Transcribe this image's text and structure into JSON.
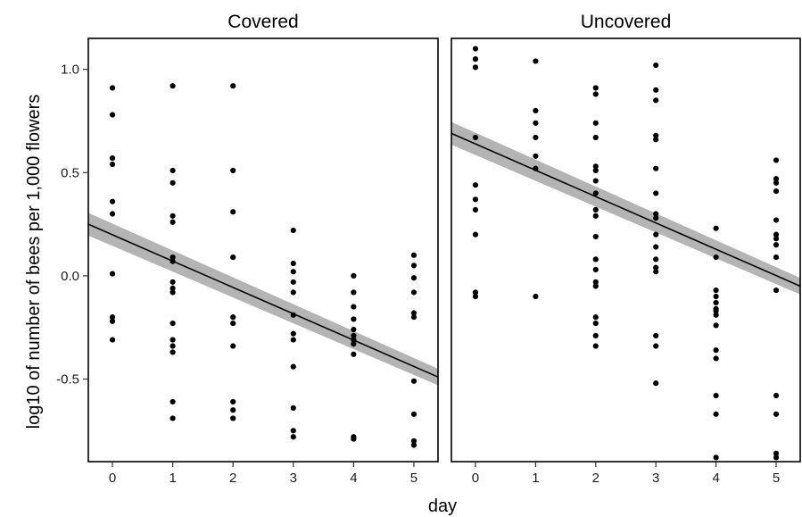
{
  "chart_data": {
    "type": "scatter",
    "xlabel": "day",
    "ylabel": "log10 of number of bees per 1,000 flowers",
    "xlim": [
      -0.4,
      5.4
    ],
    "ylim": [
      -0.9,
      1.15
    ],
    "x_ticks": [
      0,
      1,
      2,
      3,
      4,
      5
    ],
    "y_ticks": [
      -0.5,
      0.0,
      0.5,
      1.0
    ],
    "y_tick_labels": [
      "-0.5",
      "0.0",
      "0.5",
      "1.0"
    ],
    "grid": false,
    "legend": "none",
    "colors": {
      "points": "#000000",
      "band": "#b4b4b4",
      "line": "#000000"
    },
    "panels": [
      {
        "title": "Covered",
        "fit": {
          "x": [
            -0.4,
            5.4
          ],
          "y": [
            0.25,
            -0.49
          ],
          "band_halfwidth": [
            0.055,
            0.04
          ]
        },
        "points": [
          {
            "x": 0,
            "y": 0.91
          },
          {
            "x": 0,
            "y": 0.78
          },
          {
            "x": 0,
            "y": 0.57
          },
          {
            "x": 0,
            "y": 0.54
          },
          {
            "x": 0,
            "y": 0.36
          },
          {
            "x": 0,
            "y": 0.3
          },
          {
            "x": 0,
            "y": 0.01
          },
          {
            "x": 0,
            "y": -0.2
          },
          {
            "x": 0,
            "y": -0.22
          },
          {
            "x": 0,
            "y": -0.31
          },
          {
            "x": 1,
            "y": 0.92
          },
          {
            "x": 1,
            "y": 0.51
          },
          {
            "x": 1,
            "y": 0.45
          },
          {
            "x": 1,
            "y": 0.29
          },
          {
            "x": 1,
            "y": 0.26
          },
          {
            "x": 1,
            "y": 0.09
          },
          {
            "x": 1,
            "y": 0.07
          },
          {
            "x": 1,
            "y": -0.03
          },
          {
            "x": 1,
            "y": -0.06
          },
          {
            "x": 1,
            "y": -0.08
          },
          {
            "x": 1,
            "y": -0.23
          },
          {
            "x": 1,
            "y": -0.31
          },
          {
            "x": 1,
            "y": -0.34
          },
          {
            "x": 1,
            "y": -0.37
          },
          {
            "x": 1,
            "y": -0.61
          },
          {
            "x": 1,
            "y": -0.69
          },
          {
            "x": 2,
            "y": 0.92
          },
          {
            "x": 2,
            "y": 0.51
          },
          {
            "x": 2,
            "y": 0.31
          },
          {
            "x": 2,
            "y": 0.09
          },
          {
            "x": 2,
            "y": -0.2
          },
          {
            "x": 2,
            "y": -0.23
          },
          {
            "x": 2,
            "y": -0.34
          },
          {
            "x": 2,
            "y": -0.61
          },
          {
            "x": 2,
            "y": -0.65
          },
          {
            "x": 2,
            "y": -0.69
          },
          {
            "x": 3,
            "y": 0.22
          },
          {
            "x": 3,
            "y": 0.06
          },
          {
            "x": 3,
            "y": 0.02
          },
          {
            "x": 3,
            "y": -0.03
          },
          {
            "x": 3,
            "y": -0.08
          },
          {
            "x": 3,
            "y": -0.19
          },
          {
            "x": 3,
            "y": -0.28
          },
          {
            "x": 3,
            "y": -0.31
          },
          {
            "x": 3,
            "y": -0.44
          },
          {
            "x": 3,
            "y": -0.64
          },
          {
            "x": 3,
            "y": -0.75
          },
          {
            "x": 3,
            "y": -0.78
          },
          {
            "x": 4,
            "y": 0.0
          },
          {
            "x": 4,
            "y": -0.08
          },
          {
            "x": 4,
            "y": -0.15
          },
          {
            "x": 4,
            "y": -0.21
          },
          {
            "x": 4,
            "y": -0.26
          },
          {
            "x": 4,
            "y": -0.29
          },
          {
            "x": 4,
            "y": -0.31
          },
          {
            "x": 4,
            "y": -0.33
          },
          {
            "x": 4,
            "y": -0.38
          },
          {
            "x": 4,
            "y": -0.78
          },
          {
            "x": 4,
            "y": -0.79
          },
          {
            "x": 5,
            "y": 0.1
          },
          {
            "x": 5,
            "y": 0.05
          },
          {
            "x": 5,
            "y": -0.01
          },
          {
            "x": 5,
            "y": -0.08
          },
          {
            "x": 5,
            "y": -0.18
          },
          {
            "x": 5,
            "y": -0.2
          },
          {
            "x": 5,
            "y": -0.51
          },
          {
            "x": 5,
            "y": -0.67
          },
          {
            "x": 5,
            "y": -0.8
          },
          {
            "x": 5,
            "y": -0.82
          }
        ]
      },
      {
        "title": "Uncovered",
        "fit": {
          "x": [
            -0.4,
            5.4
          ],
          "y": [
            0.69,
            -0.05
          ],
          "band_halfwidth": [
            0.055,
            0.04
          ]
        },
        "points": [
          {
            "x": 0,
            "y": 1.1
          },
          {
            "x": 0,
            "y": 1.05
          },
          {
            "x": 0,
            "y": 1.01
          },
          {
            "x": 0,
            "y": 0.67
          },
          {
            "x": 0,
            "y": 0.44
          },
          {
            "x": 0,
            "y": 0.37
          },
          {
            "x": 0,
            "y": 0.32
          },
          {
            "x": 0,
            "y": 0.2
          },
          {
            "x": 0,
            "y": -0.08
          },
          {
            "x": 0,
            "y": -0.1
          },
          {
            "x": 1,
            "y": 1.04
          },
          {
            "x": 1,
            "y": 0.8
          },
          {
            "x": 1,
            "y": 0.74
          },
          {
            "x": 1,
            "y": 0.67
          },
          {
            "x": 1,
            "y": 0.58
          },
          {
            "x": 1,
            "y": 0.52
          },
          {
            "x": 1,
            "y": -0.1
          },
          {
            "x": 2,
            "y": 0.91
          },
          {
            "x": 2,
            "y": 0.88
          },
          {
            "x": 2,
            "y": 0.74
          },
          {
            "x": 2,
            "y": 0.67
          },
          {
            "x": 2,
            "y": 0.53
          },
          {
            "x": 2,
            "y": 0.51
          },
          {
            "x": 2,
            "y": 0.46
          },
          {
            "x": 2,
            "y": 0.4
          },
          {
            "x": 2,
            "y": 0.32
          },
          {
            "x": 2,
            "y": 0.29
          },
          {
            "x": 2,
            "y": 0.19
          },
          {
            "x": 2,
            "y": 0.08
          },
          {
            "x": 2,
            "y": 0.03
          },
          {
            "x": 2,
            "y": -0.03
          },
          {
            "x": 2,
            "y": -0.05
          },
          {
            "x": 2,
            "y": -0.2
          },
          {
            "x": 2,
            "y": -0.23
          },
          {
            "x": 2,
            "y": -0.29
          },
          {
            "x": 2,
            "y": -0.34
          },
          {
            "x": 3,
            "y": 1.02
          },
          {
            "x": 3,
            "y": 0.9
          },
          {
            "x": 3,
            "y": 0.85
          },
          {
            "x": 3,
            "y": 0.68
          },
          {
            "x": 3,
            "y": 0.66
          },
          {
            "x": 3,
            "y": 0.52
          },
          {
            "x": 3,
            "y": 0.4
          },
          {
            "x": 3,
            "y": 0.3
          },
          {
            "x": 3,
            "y": 0.28
          },
          {
            "x": 3,
            "y": 0.2
          },
          {
            "x": 3,
            "y": 0.14
          },
          {
            "x": 3,
            "y": 0.08
          },
          {
            "x": 3,
            "y": 0.04
          },
          {
            "x": 3,
            "y": 0.02
          },
          {
            "x": 3,
            "y": -0.29
          },
          {
            "x": 3,
            "y": -0.34
          },
          {
            "x": 3,
            "y": -0.52
          },
          {
            "x": 4,
            "y": 0.23
          },
          {
            "x": 4,
            "y": 0.09
          },
          {
            "x": 4,
            "y": -0.07
          },
          {
            "x": 4,
            "y": -0.1
          },
          {
            "x": 4,
            "y": -0.13
          },
          {
            "x": 4,
            "y": -0.16
          },
          {
            "x": 4,
            "y": -0.17
          },
          {
            "x": 4,
            "y": -0.19
          },
          {
            "x": 4,
            "y": -0.24
          },
          {
            "x": 4,
            "y": -0.36
          },
          {
            "x": 4,
            "y": -0.4
          },
          {
            "x": 4,
            "y": -0.58
          },
          {
            "x": 4,
            "y": -0.67
          },
          {
            "x": 4,
            "y": -0.88
          },
          {
            "x": 5,
            "y": 0.56
          },
          {
            "x": 5,
            "y": 0.47
          },
          {
            "x": 5,
            "y": 0.45
          },
          {
            "x": 5,
            "y": 0.41
          },
          {
            "x": 5,
            "y": 0.27
          },
          {
            "x": 5,
            "y": 0.2
          },
          {
            "x": 5,
            "y": 0.18
          },
          {
            "x": 5,
            "y": 0.15
          },
          {
            "x": 5,
            "y": 0.09
          },
          {
            "x": 5,
            "y": -0.07
          },
          {
            "x": 5,
            "y": -0.58
          },
          {
            "x": 5,
            "y": -0.67
          },
          {
            "x": 5,
            "y": -0.86
          },
          {
            "x": 5,
            "y": -0.88
          }
        ]
      }
    ]
  }
}
